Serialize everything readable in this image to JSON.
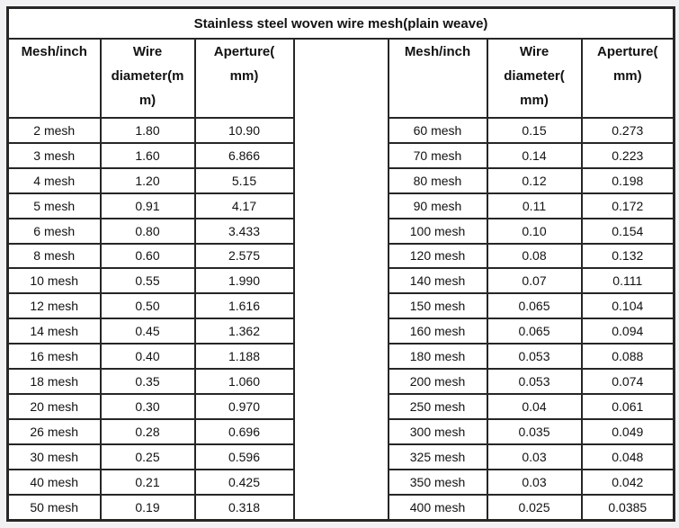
{
  "title": "Stainless steel woven wire mesh(plain weave)",
  "left_table": {
    "headers": {
      "mesh": "Mesh/inch",
      "wire_lines": [
        "Wire",
        "diameter(m",
        "m)"
      ],
      "aperture_lines": [
        "Aperture(",
        "mm)"
      ]
    },
    "rows": [
      [
        "2 mesh",
        "1.80",
        "10.90"
      ],
      [
        "3 mesh",
        "1.60",
        "6.866"
      ],
      [
        "4 mesh",
        "1.20",
        "5.15"
      ],
      [
        "5 mesh",
        "0.91",
        "4.17"
      ],
      [
        "6 mesh",
        "0.80",
        "3.433"
      ],
      [
        "8 mesh",
        "0.60",
        "2.575"
      ],
      [
        "10 mesh",
        "0.55",
        "1.990"
      ],
      [
        "12 mesh",
        "0.50",
        "1.616"
      ],
      [
        "14 mesh",
        "0.45",
        "1.362"
      ],
      [
        "16 mesh",
        "0.40",
        "1.188"
      ],
      [
        "18 mesh",
        "0.35",
        "1.060"
      ],
      [
        "20 mesh",
        "0.30",
        "0.970"
      ],
      [
        "26 mesh",
        "0.28",
        "0.696"
      ],
      [
        "30 mesh",
        "0.25",
        "0.596"
      ],
      [
        "40 mesh",
        "0.21",
        "0.425"
      ],
      [
        "50 mesh",
        "0.19",
        "0.318"
      ]
    ]
  },
  "right_table": {
    "headers": {
      "mesh": "Mesh/inch",
      "wire_lines": [
        "Wire",
        "diameter(",
        "mm)"
      ],
      "aperture_lines": [
        "Aperture(",
        "mm)"
      ]
    },
    "rows": [
      [
        "60 mesh",
        "0.15",
        "0.273"
      ],
      [
        "70 mesh",
        "0.14",
        "0.223"
      ],
      [
        "80 mesh",
        "0.12",
        "0.198"
      ],
      [
        "90 mesh",
        "0.11",
        "0.172"
      ],
      [
        "100 mesh",
        "0.10",
        "0.154"
      ],
      [
        "120 mesh",
        "0.08",
        "0.132"
      ],
      [
        "140 mesh",
        "0.07",
        "0.111"
      ],
      [
        "150 mesh",
        "0.065",
        "0.104"
      ],
      [
        "160 mesh",
        "0.065",
        "0.094"
      ],
      [
        "180 mesh",
        "0.053",
        "0.088"
      ],
      [
        "200 mesh",
        "0.053",
        "0.074"
      ],
      [
        "250 mesh",
        "0.04",
        "0.061"
      ],
      [
        "300 mesh",
        "0.035",
        "0.049"
      ],
      [
        "325 mesh",
        "0.03",
        "0.048"
      ],
      [
        "350 mesh",
        "0.03",
        "0.042"
      ],
      [
        "400 mesh",
        "0.025",
        "0.0385"
      ]
    ]
  },
  "colors": {
    "border": "#262626",
    "text": "#121212",
    "table_background": "#ffffff",
    "page_background": "#f1f1f3"
  }
}
